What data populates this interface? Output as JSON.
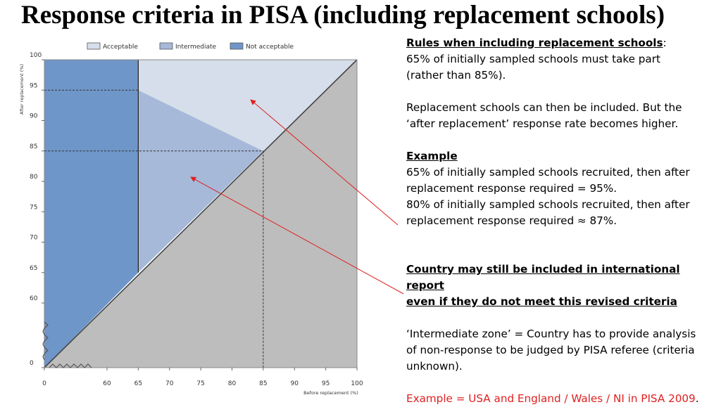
{
  "slide": {
    "title": "Response criteria in PISA (including replacement schools)"
  },
  "chart_data": {
    "type": "area",
    "xlabel": "Before replacement (%)",
    "ylabel": "After replacement (%)",
    "xticks": [
      "0",
      "60",
      "65",
      "70",
      "75",
      "80",
      "85",
      "90",
      "95",
      "100"
    ],
    "yticks": [
      "0",
      "60",
      "65",
      "70",
      "75",
      "80",
      "85",
      "90",
      "95",
      "100"
    ],
    "xlim": [
      0,
      100
    ],
    "ylim": [
      0,
      100
    ],
    "axis_break": "below 60 on both axes",
    "legend_position": "top",
    "legend": [
      {
        "label": "Acceptable",
        "color": "#d5deea"
      },
      {
        "label": "Intermediate",
        "color": "#a6b9d9"
      },
      {
        "label": "Not acceptable",
        "color": "#6f96c8"
      }
    ],
    "regions": [
      {
        "name": "Not acceptable",
        "points": [
          [
            0,
            0
          ],
          [
            65,
            65
          ],
          [
            65,
            100
          ],
          [
            0,
            100
          ]
        ]
      },
      {
        "name": "Intermediate",
        "points": [
          [
            65,
            65
          ],
          [
            85,
            85
          ],
          [
            65,
            95
          ]
        ]
      },
      {
        "name": "Acceptable",
        "points": [
          [
            65,
            95
          ],
          [
            85,
            85
          ],
          [
            100,
            100
          ],
          [
            65,
            100
          ]
        ]
      },
      {
        "name": "Below diagonal",
        "points": [
          [
            0,
            0
          ],
          [
            100,
            0
          ],
          [
            100,
            100
          ]
        ]
      }
    ],
    "reference_lines": [
      {
        "from": [
          0,
          95
        ],
        "to": [
          65,
          95
        ]
      },
      {
        "from": [
          0,
          85
        ],
        "to": [
          85,
          85
        ]
      },
      {
        "from": [
          85,
          85
        ],
        "to": [
          85,
          0
        ]
      }
    ]
  },
  "notes": {
    "rules_heading": "Rules when including replacement schools",
    "rules_colon": ":",
    "rules_line1": "65% of initially sampled schools must take part",
    "rules_line2": "(rather than 85%).",
    "replacement_line1": "Replacement schools can then be included. But the",
    "replacement_line2": "‘after replacement’ response rate becomes higher.",
    "example_heading": "Example",
    "example_line1": "65% of initially sampled schools recruited, then after",
    "example_line2": "replacement response required = 95%.",
    "example_line3": "80% of initially sampled schools recruited, then after",
    "example_line4": "replacement response required ≈ 87%.",
    "country_line1": "Country may still be included in international report",
    "country_line2": "even if they do not meet this revised criteria",
    "intermediate_line1": "‘Intermediate zone’ = Country has to provide analysis",
    "intermediate_line2": "of non-response to be judged by PISA referee (criteria",
    "intermediate_line3": "unknown).",
    "red_example": "Example = USA and England / Wales / NI in PISA 2009",
    "red_example_period": "."
  },
  "colors": {
    "not_acceptable": "#6f96c8",
    "intermediate": "#a6b9d9",
    "acceptable": "#d5deea",
    "below_diagonal": "#bdbdbd",
    "arrow": "#e02020"
  }
}
